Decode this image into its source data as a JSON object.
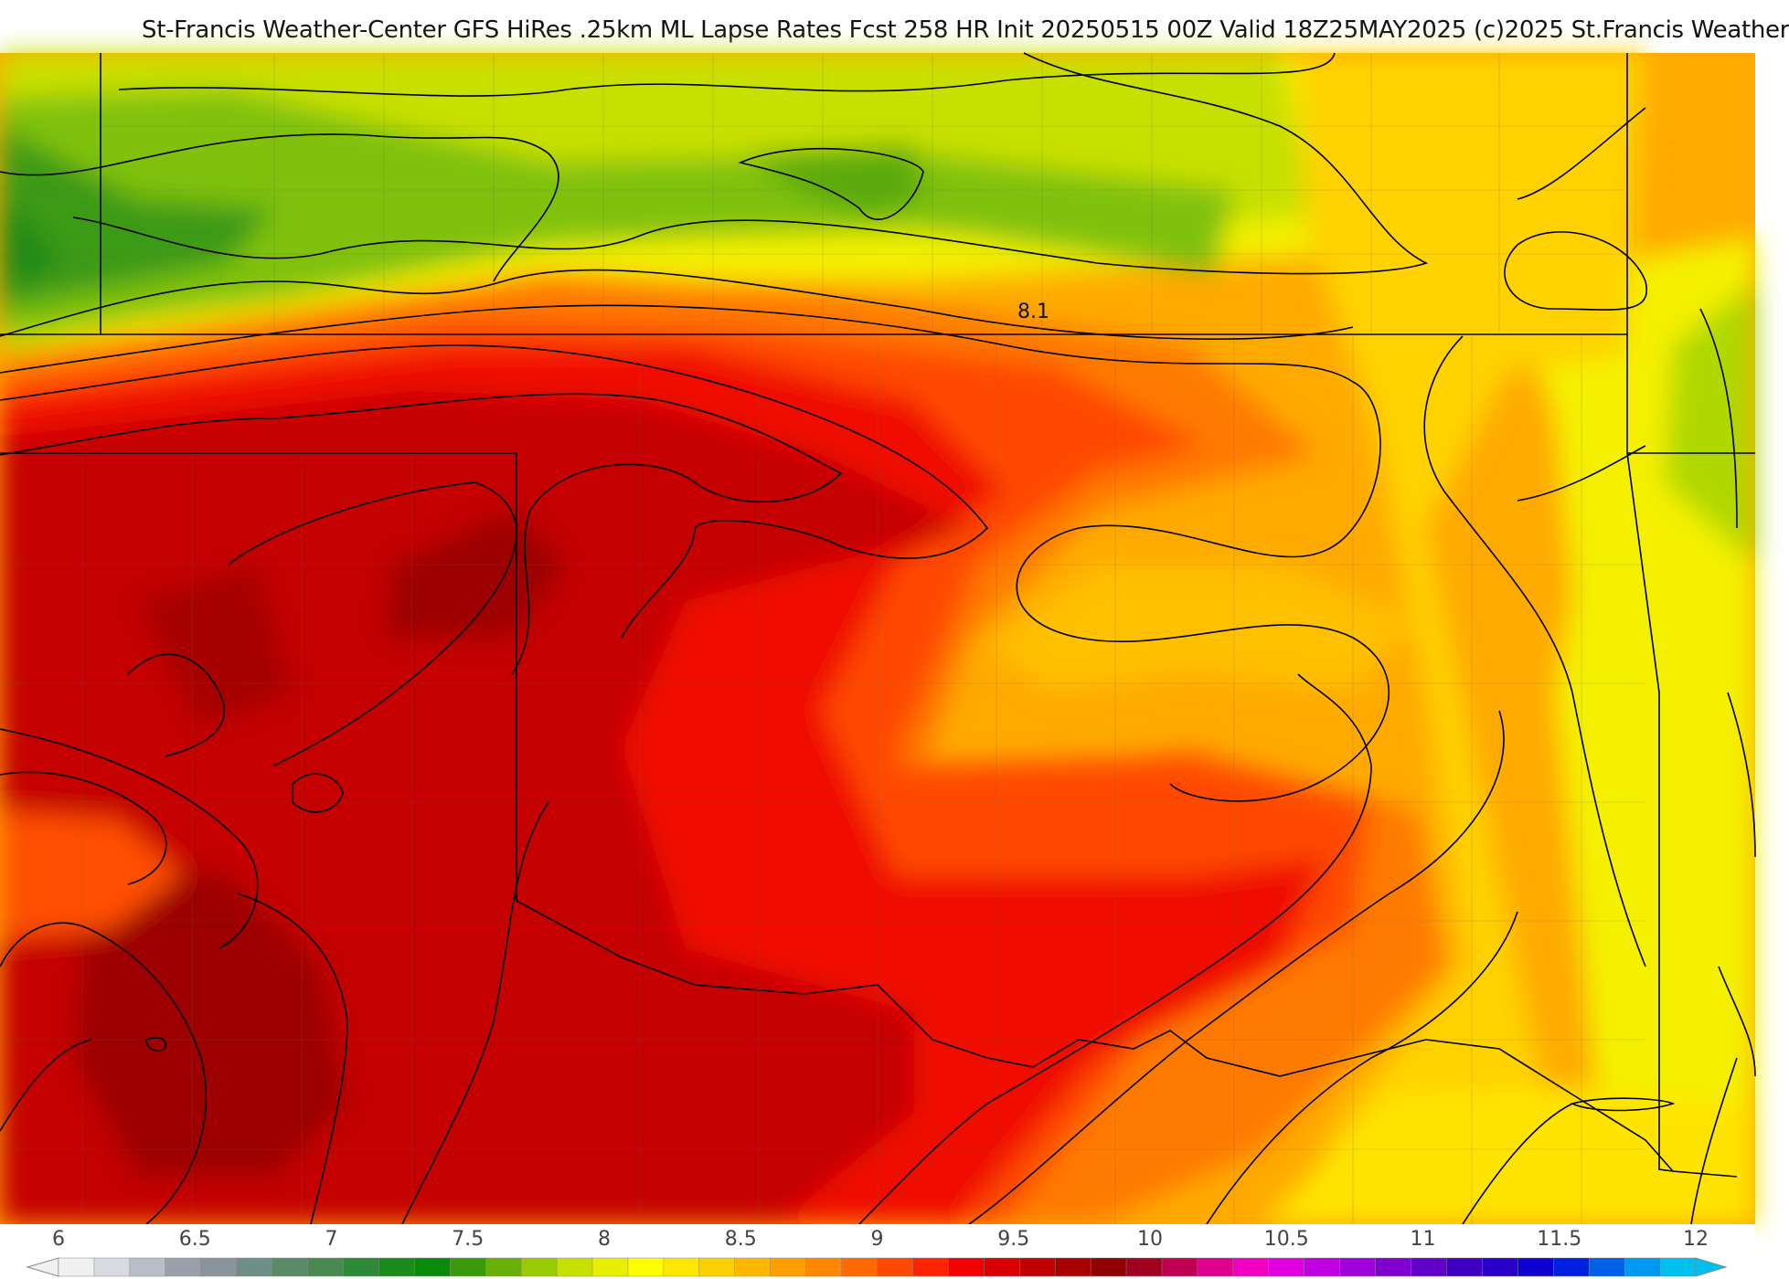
{
  "header": {
    "title": "St-Francis Weather-Center GFS HiRes .25km ML Lapse Rates  Fcst 258 HR Init 20250515 00Z  Valid 18Z25MAY2025    (c)2025 St.Francis Weather"
  },
  "map": {
    "contour_label": "8.1",
    "field_description_colors": {
      "green_dark": "#1e8a12",
      "green": "#7fc10a",
      "yellow_green": "#c8e000",
      "yellow": "#f4f000",
      "yellow_orange": "#ffd200",
      "orange": "#ffaa00",
      "dark_orange": "#ff7a00",
      "red_orange": "#ff4a00",
      "red": "#f01000",
      "dark_red": "#c40000",
      "maroon": "#9c0000"
    }
  },
  "colorbar": {
    "tick_labels": [
      "6",
      "6.5",
      "7",
      "7.5",
      "8",
      "8.5",
      "9",
      "9.5",
      "10",
      "10.5",
      "11",
      "11.5",
      "12"
    ],
    "colors": [
      "#f0f0f0",
      "#d8dce2",
      "#b8bec8",
      "#9aa0ab",
      "#8a949d",
      "#6f8f86",
      "#5a8a6a",
      "#4a8a52",
      "#2f8a38",
      "#1c8a1c",
      "#0a8a0a",
      "#3a9a0a",
      "#6ab00a",
      "#9acb05",
      "#c8e000",
      "#e8f000",
      "#ffff00",
      "#ffe800",
      "#ffd000",
      "#ffb800",
      "#ffa000",
      "#ff8800",
      "#ff6a00",
      "#ff4800",
      "#ff2400",
      "#f00000",
      "#d80000",
      "#c00000",
      "#a80000",
      "#900000",
      "#a00020",
      "#c00050",
      "#e00090",
      "#f000c0",
      "#e000e0",
      "#c000e0",
      "#a000d8",
      "#8000d0",
      "#6000c8",
      "#4000c0",
      "#2800c8",
      "#1000d0",
      "#0020e0",
      "#0060e8",
      "#0098f0",
      "#00c0f0"
    ]
  }
}
